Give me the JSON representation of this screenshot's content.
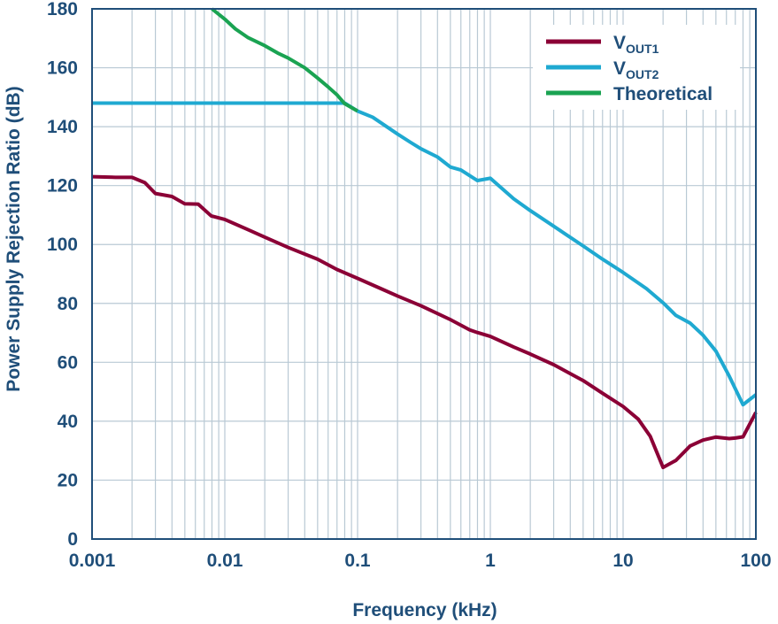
{
  "colors": {
    "text": "#1f4e79",
    "grid": "#b9c9d4",
    "frame": "#1f4e79",
    "vout1": "#8b0036",
    "vout2": "#1fa9d1",
    "theoretical": "#1aa352"
  },
  "chart_data": {
    "type": "line",
    "xlabel": "Frequency (kHz)",
    "ylabel": "Power Supply Rejection Ratio (dB)",
    "xscale": "log",
    "xlim": [
      0.001,
      100
    ],
    "ylim": [
      0,
      180
    ],
    "x_ticks": [
      "0.001",
      "0.01",
      "0.1",
      "1",
      "10",
      "100"
    ],
    "y_ticks": [
      "0",
      "20",
      "40",
      "60",
      "80",
      "100",
      "120",
      "140",
      "160",
      "180"
    ],
    "grid": true,
    "legend_position": "top-right",
    "series": [
      {
        "name": "VOUT1",
        "label_main": "V",
        "label_sub": "OUT1",
        "color_key": "vout1",
        "points": [
          [
            0.001,
            123
          ],
          [
            0.0015,
            122.8
          ],
          [
            0.002,
            122.8
          ],
          [
            0.0025,
            121
          ],
          [
            0.003,
            117.3
          ],
          [
            0.004,
            116.3
          ],
          [
            0.005,
            113.8
          ],
          [
            0.0063,
            113.7
          ],
          [
            0.0079,
            109.7
          ],
          [
            0.01,
            108.5
          ],
          [
            0.015,
            105
          ],
          [
            0.02,
            102.5
          ],
          [
            0.03,
            99
          ],
          [
            0.05,
            95
          ],
          [
            0.07,
            91.5
          ],
          [
            0.1,
            88.5
          ],
          [
            0.15,
            85
          ],
          [
            0.2,
            82.5
          ],
          [
            0.3,
            79.2
          ],
          [
            0.5,
            74.5
          ],
          [
            0.7,
            71
          ],
          [
            0.8,
            70.1
          ],
          [
            1,
            68.8
          ],
          [
            1.5,
            65.2
          ],
          [
            2,
            62.8
          ],
          [
            3,
            59.2
          ],
          [
            5,
            53.8
          ],
          [
            7,
            49.5
          ],
          [
            10,
            45
          ],
          [
            13,
            40.7
          ],
          [
            16,
            34.9
          ],
          [
            20,
            24.3
          ],
          [
            25,
            26.7
          ],
          [
            32,
            31.6
          ],
          [
            40,
            33.6
          ],
          [
            50,
            34.6
          ],
          [
            63,
            34.1
          ],
          [
            70,
            34.3
          ],
          [
            80,
            34.7
          ],
          [
            100,
            43
          ]
        ]
      },
      {
        "name": "VOUT2",
        "label_main": "V",
        "label_sub": "OUT2",
        "color_key": "vout2",
        "points": [
          [
            0.001,
            148
          ],
          [
            0.08,
            148
          ],
          [
            0.1,
            145.3
          ],
          [
            0.13,
            143.2
          ],
          [
            0.2,
            137.5
          ],
          [
            0.25,
            134.7
          ],
          [
            0.3,
            132.5
          ],
          [
            0.4,
            129.7
          ],
          [
            0.5,
            126.3
          ],
          [
            0.6,
            125.3
          ],
          [
            0.8,
            121.7
          ],
          [
            1,
            122.5
          ],
          [
            1.5,
            115.5
          ],
          [
            2,
            111.5
          ],
          [
            3,
            106.2
          ],
          [
            5,
            99.5
          ],
          [
            7,
            95
          ],
          [
            10,
            90.5
          ],
          [
            15,
            85
          ],
          [
            20,
            80.2
          ],
          [
            25,
            75.9
          ],
          [
            32,
            73.3
          ],
          [
            40,
            69.2
          ],
          [
            50,
            63.8
          ],
          [
            63,
            55.3
          ],
          [
            80,
            45.6
          ],
          [
            100,
            49
          ]
        ]
      },
      {
        "name": "Theoretical",
        "label_main": "Theoretical",
        "label_sub": "",
        "color_key": "theoretical",
        "points": [
          [
            0.008,
            180
          ],
          [
            0.01,
            176.5
          ],
          [
            0.012,
            173.2
          ],
          [
            0.015,
            170.2
          ],
          [
            0.02,
            167.5
          ],
          [
            0.025,
            165
          ],
          [
            0.03,
            163.3
          ],
          [
            0.04,
            160
          ],
          [
            0.05,
            156.5
          ],
          [
            0.06,
            153.5
          ],
          [
            0.07,
            150.8
          ],
          [
            0.08,
            147.8
          ],
          [
            0.1,
            145.3
          ]
        ]
      }
    ]
  }
}
